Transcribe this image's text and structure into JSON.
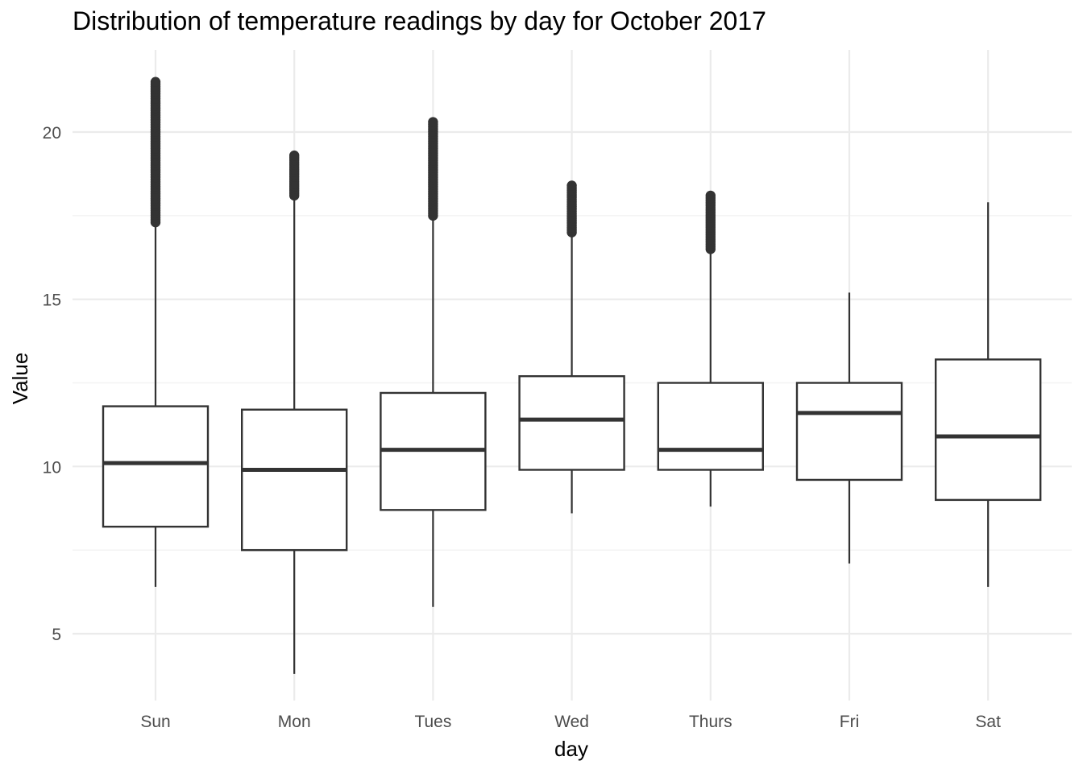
{
  "chart_data": {
    "type": "boxplot",
    "title": "Distribution of temperature readings by day for October 2017",
    "xlabel": "day",
    "ylabel": "Value",
    "ylim": [
      2.9,
      22.3
    ],
    "y_ticks": [
      5,
      10,
      15,
      20
    ],
    "y_minor_ticks": [
      7.5,
      12.5,
      17.5
    ],
    "grid": true,
    "categories": [
      "Sun",
      "Mon",
      "Tues",
      "Wed",
      "Thurs",
      "Fri",
      "Sat"
    ],
    "boxes": [
      {
        "category": "Sun",
        "whisker_low": 6.4,
        "q1": 8.2,
        "median": 10.1,
        "q3": 11.8,
        "whisker_high": 17.3,
        "outliers_range": [
          17.3,
          21.5
        ]
      },
      {
        "category": "Mon",
        "whisker_low": 3.8,
        "q1": 7.5,
        "median": 9.9,
        "q3": 11.7,
        "whisker_high": 18.1,
        "outliers_range": [
          18.1,
          19.3
        ]
      },
      {
        "category": "Tues",
        "whisker_low": 5.8,
        "q1": 8.7,
        "median": 10.5,
        "q3": 12.2,
        "whisker_high": 17.5,
        "outliers_range": [
          17.5,
          20.3
        ]
      },
      {
        "category": "Wed",
        "whisker_low": 8.6,
        "q1": 9.9,
        "median": 11.4,
        "q3": 12.7,
        "whisker_high": 17.0,
        "outliers_range": [
          17.0,
          18.4
        ]
      },
      {
        "category": "Thurs",
        "whisker_low": 8.8,
        "q1": 9.9,
        "median": 10.5,
        "q3": 12.5,
        "whisker_high": 16.5,
        "outliers_range": [
          16.5,
          18.1
        ]
      },
      {
        "category": "Fri",
        "whisker_low": 7.1,
        "q1": 9.6,
        "median": 11.6,
        "q3": 12.5,
        "whisker_high": 15.2,
        "outliers_range": null
      },
      {
        "category": "Sat",
        "whisker_low": 6.4,
        "q1": 9.0,
        "median": 10.9,
        "q3": 13.2,
        "whisker_high": 17.9,
        "outliers_range": null
      }
    ],
    "colors": {
      "box_stroke": "#333333",
      "box_fill": "#ffffff",
      "grid_major": "#ebebeb",
      "grid_minor": "#f3f3f3",
      "tick_label": "#4d4d4d",
      "axis_title": "#000000"
    }
  }
}
